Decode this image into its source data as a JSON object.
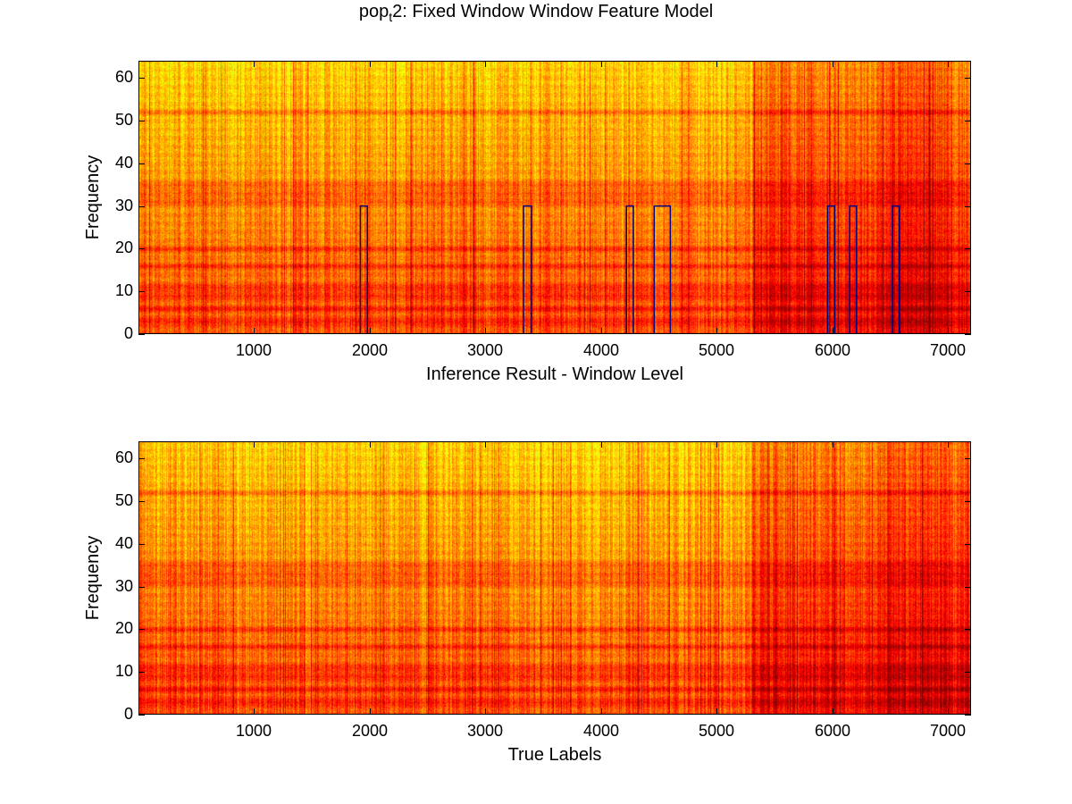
{
  "figure": {
    "title_main": "pop",
    "title_sub": "t",
    "title_rest": "2: Fixed Window Window Feature Model"
  },
  "chart_data": [
    {
      "type": "heatmap",
      "name": "inference-spectrogram",
      "xlabel": "Inference Result - Window Level",
      "ylabel": "Frequency",
      "xlim": [
        1,
        7200
      ],
      "ylim": [
        0,
        64
      ],
      "xticks": [
        1000,
        2000,
        3000,
        4000,
        5000,
        6000,
        7000
      ],
      "xtick_labels": [
        "1000",
        "2000",
        "3000",
        "4000",
        "5000",
        "6000",
        "7000"
      ],
      "yticks": [
        0,
        10,
        20,
        30,
        40,
        50,
        60
      ],
      "ytick_labels": [
        "0",
        "10",
        "20",
        "30",
        "40",
        "50",
        "60"
      ],
      "colormap": "jet",
      "colormap_range_shown": [
        "#20ffd0",
        "#a0ff60",
        "#ffff00",
        "#ff9000",
        "#ff2000",
        "#a00000"
      ],
      "strong_bands": [
        3,
        6,
        9,
        11,
        16,
        20,
        31,
        33,
        35,
        52
      ],
      "red_column_regions": [
        [
          5300,
          7200
        ]
      ],
      "label_overlay": {
        "color": "#000080",
        "baseline": 0,
        "high": 30,
        "pulses": [
          [
            1920,
            1980
          ],
          [
            3330,
            3400
          ],
          [
            4220,
            4280
          ],
          [
            4460,
            4600
          ],
          [
            5960,
            6020
          ],
          [
            6150,
            6210
          ],
          [
            6520,
            6580
          ]
        ]
      }
    },
    {
      "type": "heatmap",
      "name": "true-labels-spectrogram",
      "xlabel": "True Labels",
      "ylabel": "Frequency",
      "xlim": [
        1,
        7200
      ],
      "ylim": [
        0,
        64
      ],
      "xticks": [
        1000,
        2000,
        3000,
        4000,
        5000,
        6000,
        7000
      ],
      "xtick_labels": [
        "1000",
        "2000",
        "3000",
        "4000",
        "5000",
        "6000",
        "7000"
      ],
      "yticks": [
        0,
        10,
        20,
        30,
        40,
        50,
        60
      ],
      "ytick_labels": [
        "0",
        "10",
        "20",
        "30",
        "40",
        "50",
        "60"
      ],
      "colormap": "jet",
      "colormap_range_shown": [
        "#20ffd0",
        "#a0ff60",
        "#ffff00",
        "#ff9000",
        "#ff2000",
        "#a00000"
      ],
      "strong_bands": [
        3,
        6,
        9,
        11,
        16,
        20,
        31,
        33,
        35,
        52
      ],
      "red_column_regions": [
        [
          5300,
          7200
        ]
      ]
    }
  ]
}
